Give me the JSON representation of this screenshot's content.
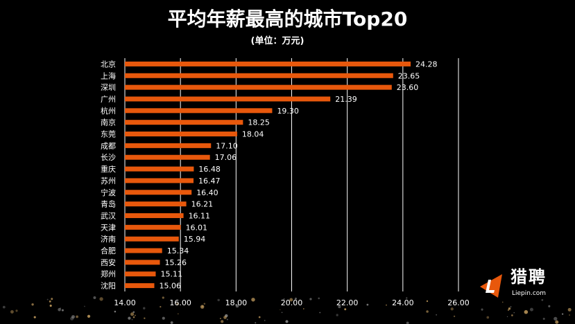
{
  "chart_data": {
    "type": "bar",
    "orientation": "horizontal",
    "title": "平均年薪最高的城市Top20",
    "subtitle": "(单位：万元)",
    "categories": [
      "北京",
      "上海",
      "深圳",
      "广州",
      "杭州",
      "南京",
      "东莞",
      "成都",
      "长沙",
      "重庆",
      "苏州",
      "宁波",
      "青岛",
      "武汉",
      "天津",
      "济南",
      "合肥",
      "西安",
      "郑州",
      "沈阳"
    ],
    "values": [
      24.28,
      23.65,
      23.6,
      21.39,
      19.3,
      18.25,
      18.04,
      17.1,
      17.06,
      16.48,
      16.47,
      16.4,
      16.21,
      16.11,
      16.01,
      15.94,
      15.34,
      15.26,
      15.11,
      15.06
    ],
    "xlim": [
      14,
      26
    ],
    "xticks": [
      "14.00",
      "16.00",
      "18.00",
      "20.00",
      "22.00",
      "24.00",
      "26.00"
    ],
    "grid": true,
    "bar_color": "#e8580c",
    "background": "#000000"
  },
  "logo": {
    "cn": "猎聘",
    "en": "Liepin.com",
    "color": "#e8580c"
  }
}
